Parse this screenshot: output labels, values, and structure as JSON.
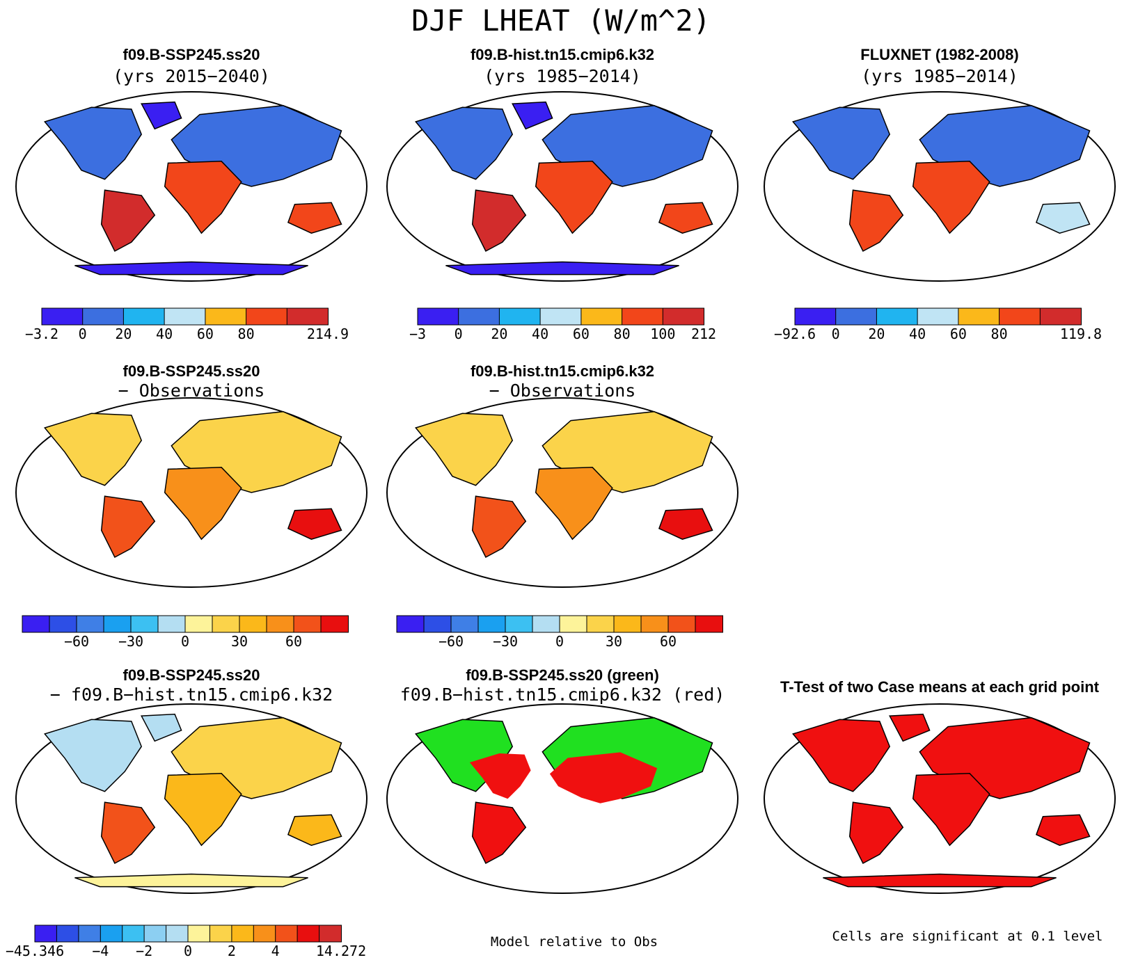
{
  "figure_title": "DJF LHEAT (W/m^2)",
  "notes": {
    "relative": "Model relative to Obs",
    "significance": "Cells are significant at 0.1 level"
  },
  "palettes": {
    "abs": [
      "#3a1ff2",
      "#3c6fe0",
      "#20b4f0",
      "#c0e4f4",
      "#fbb81a",
      "#f2461a",
      "#d22c2c"
    ],
    "diff": [
      "#3a1ff2",
      "#2d4fe6",
      "#3f7fe6",
      "#1aa0f0",
      "#3cc0f2",
      "#8ccff2",
      "#b4def2",
      "#fdf39a",
      "#fbd34a",
      "#fbb81a",
      "#f8901a",
      "#f2521a",
      "#e80f0f",
      "#d22c2c"
    ],
    "diff3": [
      "#3a1ff2",
      "#2d4fe6",
      "#3f7fe6",
      "#1aa0f0",
      "#3cc0f2",
      "#8ccff2",
      "#b4def2",
      "#fdf39a",
      "#fbd34a",
      "#fbb81a",
      "#f8901a",
      "#f2521a",
      "#e80f0f",
      "#d22c2c"
    ],
    "green_red": [
      "#20e020",
      "#f01010"
    ],
    "ttest": [
      "#f01010"
    ]
  },
  "chart_data": [
    {
      "type": "heatmap",
      "title": "f09.B-SSP245.ss20",
      "subtitle": "(yrs 2015−2040)",
      "colorbar": {
        "colors": [
          "#3a1ff2",
          "#3c6fe0",
          "#20b4f0",
          "#c0e4f4",
          "#fbb81a",
          "#f2461a",
          "#d22c2c"
        ],
        "tick_labels": [
          "−3.2",
          "0",
          "20",
          "40",
          "60",
          "80",
          "214.9"
        ],
        "tick_boundaries": [
          0,
          1,
          2,
          3,
          4,
          5,
          7
        ],
        "min": -3.2,
        "max": 214.9
      }
    },
    {
      "type": "heatmap",
      "title": "f09.B-hist.tn15.cmip6.k32",
      "subtitle": "(yrs 1985−2014)",
      "colorbar": {
        "colors": [
          "#3a1ff2",
          "#3c6fe0",
          "#20b4f0",
          "#c0e4f4",
          "#fbb81a",
          "#f2461a",
          "#d22c2c"
        ],
        "tick_labels": [
          "−3",
          "0",
          "20",
          "40",
          "60",
          "80",
          "100",
          "212"
        ],
        "tick_boundaries": [
          0,
          1,
          2,
          3,
          4,
          5,
          6,
          7
        ],
        "min": -3,
        "max": 212
      }
    },
    {
      "type": "heatmap",
      "title": "FLUXNET (1982-2008)",
      "subtitle": "(yrs 1985−2014)",
      "colorbar": {
        "colors": [
          "#3a1ff2",
          "#3c6fe0",
          "#20b4f0",
          "#c0e4f4",
          "#fbb81a",
          "#f2461a",
          "#d22c2c"
        ],
        "tick_labels": [
          "−92.6",
          "0",
          "20",
          "40",
          "60",
          "80",
          "119.8"
        ],
        "tick_boundaries": [
          0,
          1,
          2,
          3,
          4,
          5,
          7
        ],
        "min": -92.6,
        "max": 119.8
      }
    },
    {
      "type": "heatmap",
      "title": "f09.B-SSP245.ss20",
      "subtitle": "− Observations",
      "colorbar": {
        "colors": [
          "#3a1ff2",
          "#2d4fe6",
          "#3f7fe6",
          "#1aa0f0",
          "#3cc0f2",
          "#b4def2",
          "#fdf39a",
          "#fbd34a",
          "#fbb81a",
          "#f8901a",
          "#f2521a",
          "#e80f0f"
        ],
        "tick_labels": [
          "−60",
          "−30",
          "0",
          "30",
          "60"
        ],
        "tick_boundaries": [
          2,
          4,
          6,
          8,
          10
        ],
        "segments": 12
      }
    },
    {
      "type": "heatmap",
      "title": "f09.B-hist.tn15.cmip6.k32",
      "subtitle": "− Observations",
      "colorbar": {
        "colors": [
          "#3a1ff2",
          "#2d4fe6",
          "#3f7fe6",
          "#1aa0f0",
          "#3cc0f2",
          "#b4def2",
          "#fdf39a",
          "#fbd34a",
          "#fbb81a",
          "#f8901a",
          "#f2521a",
          "#e80f0f"
        ],
        "tick_labels": [
          "−60",
          "−30",
          "0",
          "30",
          "60"
        ],
        "tick_boundaries": [
          2,
          4,
          6,
          8,
          10
        ],
        "segments": 12
      }
    },
    {
      "type": "heatmap",
      "title": "f09.B-SSP245.ss20",
      "subtitle": "− f09.B−hist.tn15.cmip6.k32",
      "colorbar": {
        "colors": [
          "#3a1ff2",
          "#2d4fe6",
          "#3f7fe6",
          "#1aa0f0",
          "#3cc0f2",
          "#8ccff2",
          "#b4def2",
          "#fdf39a",
          "#fbd34a",
          "#fbb81a",
          "#f8901a",
          "#f2521a",
          "#e80f0f",
          "#d22c2c"
        ],
        "tick_labels": [
          "−45.346",
          "−4",
          "−2",
          "0",
          "2",
          "4",
          "14.272"
        ],
        "tick_boundaries": [
          0,
          3,
          5,
          7,
          9,
          11,
          14
        ],
        "min": -45.346,
        "max": 14.272
      }
    },
    {
      "type": "heatmap",
      "title": "f09.B-SSP245.ss20 (green)",
      "subtitle": "f09.B−hist.tn15.cmip6.k32 (red)"
    },
    {
      "type": "heatmap",
      "title": "T-Test of two Case means at each grid point",
      "subtitle": ""
    }
  ]
}
